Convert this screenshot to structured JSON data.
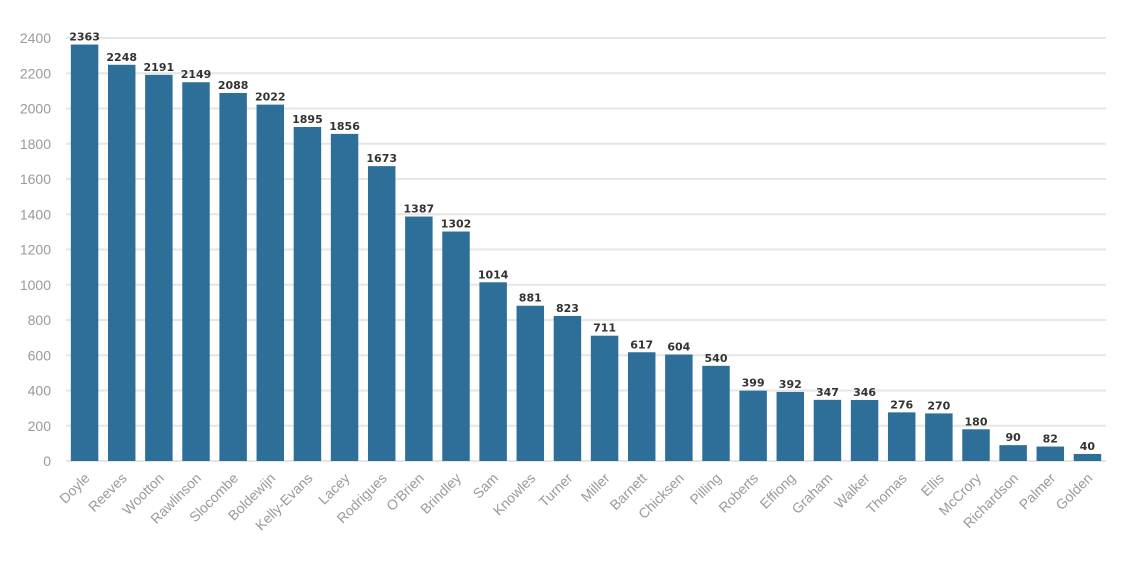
{
  "chart_data": {
    "type": "bar",
    "title": "",
    "xlabel": "",
    "ylabel": "",
    "ylim": [
      0,
      2400
    ],
    "yticks": [
      0,
      200,
      400,
      600,
      800,
      1000,
      1200,
      1400,
      1600,
      1800,
      2000,
      2200,
      2400
    ],
    "grid": true,
    "categories": [
      "Doyle",
      "Reeves",
      "Wootton",
      "Rawlinson",
      "Slocombe",
      "Boldewijn",
      "Kelly-Evans",
      "Lacey",
      "Rodrigues",
      "O'Brien",
      "Brindley",
      "Sam",
      "Knowles",
      "Turner",
      "Miller",
      "Barnett",
      "Chicksen",
      "Pilling",
      "Roberts",
      "Effiong",
      "Graham",
      "Walker",
      "Thomas",
      "Ellis",
      "McCrory",
      "Richardson",
      "Palmer",
      "Golden"
    ],
    "values": [
      2363,
      2248,
      2191,
      2149,
      2088,
      2022,
      1895,
      1856,
      1673,
      1387,
      1302,
      1014,
      881,
      823,
      711,
      617,
      604,
      540,
      399,
      392,
      347,
      346,
      276,
      270,
      180,
      90,
      82,
      40
    ],
    "colors": {
      "bar": "#2e6f9a",
      "grid": "#e6e6e6",
      "tick_text": "#9a9a9a",
      "value_text": "#333333"
    }
  }
}
